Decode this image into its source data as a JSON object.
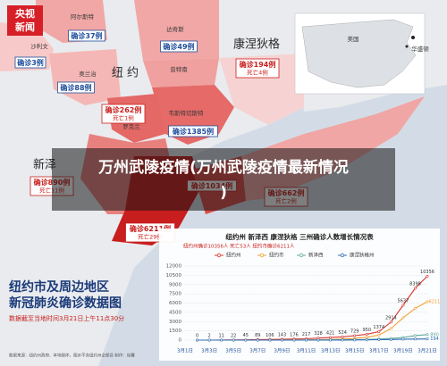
{
  "logo": [
    "央视",
    "新闻"
  ],
  "overlay": [
    "万州武陵疫情(万州武陵疫情最新情况",
    ")"
  ],
  "places": [
    "阿尔斯特",
    "沙利文",
    "达奇斯",
    "奥兰治",
    "普特南",
    "康涅狄格",
    "纽 约",
    "韦斯特切斯特",
    "罗克兰",
    "新泽",
    "美国",
    "华盛顿"
  ],
  "cases": [
    {
      "count": "确诊37例"
    },
    {
      "count": "确诊3例"
    },
    {
      "count": "确诊49例"
    },
    {
      "count": "确诊88例"
    },
    {
      "count": "确诊194例",
      "deaths": "死亡4例"
    },
    {
      "count": "确诊262例",
      "deaths": "死亡1例"
    },
    {
      "count": "确诊1385例"
    },
    {
      "count": "确诊890例",
      "deaths": "死亡11例"
    },
    {
      "count": "确诊1034例"
    },
    {
      "count": "确诊662例",
      "deaths": "死亡2例"
    },
    {
      "count": "确诊6211例",
      "deaths": "死亡29例"
    }
  ],
  "footer": {
    "title": [
      "纽约市及周边地区",
      "新冠肺炎确诊数据图"
    ],
    "note": "数据截至当地时间3月21日上午11点30分",
    "source": "数据来源：纽约州政府、本地媒体，图示不含纽约州全部县 制作：徐馨"
  },
  "chart_data": {
    "type": "line",
    "title": "纽约州 新泽西 康涅狄格 三州确诊人数增长情况表",
    "subtitle": "纽约州确诊10356人 死亡53人  纽约市确诊6211人",
    "categories": [
      "3月1日",
      null,
      "3月3日",
      null,
      "3月5日",
      null,
      "3月7日",
      null,
      "3月9日",
      null,
      "3月11日",
      null,
      "3月13日",
      null,
      "3月15日",
      null,
      "3月17日",
      null,
      "3月19日",
      null,
      "3月21日"
    ],
    "ylim": [
      0,
      12000
    ],
    "yticks": [
      0,
      1500,
      3000,
      4500,
      6000,
      7500,
      9000,
      10500,
      12000
    ],
    "grid": true,
    "series": [
      {
        "name": "纽约州",
        "color": "#d9322e",
        "values": [
          null,
          0,
          2,
          11,
          22,
          45,
          89,
          106,
          143,
          176,
          217,
          328,
          421,
          524,
          729,
          950,
          1374,
          2914,
          5637,
          8398,
          10356
        ]
      },
      {
        "name": "纽约市",
        "color": "#f0a030",
        "values": [
          null,
          0,
          0,
          0,
          1,
          2,
          4,
          12,
          20,
          25,
          36,
          53,
          95,
          154,
          269,
          463,
          814,
          1871,
          3615,
          5151,
          6211
        ]
      },
      {
        "name": "新泽西",
        "color": "#5fa8a0",
        "values": [
          null,
          0,
          0,
          0,
          1,
          2,
          2,
          3,
          4,
          6,
          11,
          23,
          29,
          50,
          69,
          98,
          178,
          267,
          427,
          742,
          890
        ]
      },
      {
        "name": "康涅狄格州",
        "color": "#2f6fb5",
        "values": [
          null,
          0,
          0,
          0,
          0,
          0,
          0,
          1,
          1,
          2,
          3,
          5,
          11,
          20,
          26,
          41,
          68,
          96,
          159,
          180,
          194
        ]
      }
    ]
  }
}
